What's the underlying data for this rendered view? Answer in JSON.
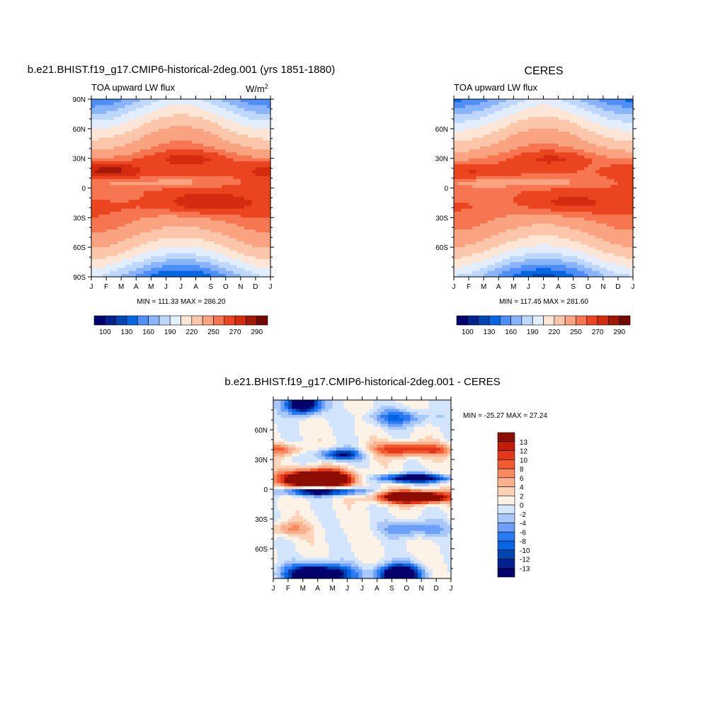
{
  "colors": {
    "seq": [
      "#03006d",
      "#02238f",
      "#0046b3",
      "#0566e4",
      "#4f8ef7",
      "#8ab4fa",
      "#bdd7fd",
      "#e2eefd",
      "#fde6d6",
      "#fbc6a9",
      "#f9a381",
      "#f57650",
      "#eb4520",
      "#d52b0f",
      "#a21806",
      "#730a01"
    ],
    "diff": [
      "#03006d",
      "#02238f",
      "#0046b3",
      "#0566e4",
      "#2a7af5",
      "#6ca0fa",
      "#a8c8fc",
      "#d3e5fd",
      "#fdf2e6",
      "#fdd2b7",
      "#fbb18d",
      "#f98a60",
      "#f25b30",
      "#e3391a",
      "#c01d0a",
      "#8c0d02"
    ]
  },
  "panels": [
    {
      "title": "b.e21.BHIST.f19_g17.CMIP6-historical-2deg.001 (yrs 1851-1880)",
      "subtitle": "TOA upward LW flux",
      "units": "W/m",
      "units_sup": "2",
      "stats": "MIN = 111.33 MAX = 286.20",
      "x_ticks": [
        "J",
        "F",
        "M",
        "A",
        "M",
        "J",
        "J",
        "A",
        "S",
        "O",
        "N",
        "D",
        "J"
      ],
      "y_ticks": [
        "90N",
        "60N",
        "30N",
        "0",
        "30S",
        "60S",
        "90S"
      ],
      "colorbar_labels": [
        "100",
        "130",
        "160",
        "190",
        "220",
        "250",
        "270",
        "290"
      ]
    },
    {
      "title": "CERES",
      "subtitle": "TOA upward LW flux",
      "stats": "MIN = 117.45 MAX = 281.60",
      "x_ticks": [
        "J",
        "F",
        "M",
        "A",
        "M",
        "J",
        "J",
        "A",
        "S",
        "O",
        "N",
        "D",
        "J"
      ],
      "y_ticks": [
        "60N",
        "30N",
        "0",
        "30S",
        "60S"
      ],
      "colorbar_labels": [
        "100",
        "130",
        "160",
        "190",
        "220",
        "250",
        "270",
        "290"
      ]
    },
    {
      "title": "b.e21.BHIST.f19_g17.CMIP6-historical-2deg.001 - CERES",
      "stats": "MIN = -25.27 MAX =  27.24",
      "x_ticks": [
        "J",
        "F",
        "M",
        "A",
        "M",
        "J",
        "J",
        "A",
        "S",
        "O",
        "N",
        "D",
        "J"
      ],
      "y_ticks": [
        "60N",
        "30N",
        "0",
        "30S",
        "60S"
      ],
      "colorbar_labels": [
        "13",
        "12",
        "10",
        "8",
        "6",
        "4",
        "2",
        "0",
        "-2",
        "-4",
        "-6",
        "-8",
        "-10",
        "-12",
        "-13"
      ]
    }
  ],
  "chart_data": [
    {
      "type": "heatmap",
      "title": "b.e21.BHIST.f19_g17.CMIP6-historical-2deg.001 (yrs 1851-1880)",
      "subtitle": "TOA upward LW flux",
      "units": "W/m2",
      "x": [
        "J",
        "F",
        "M",
        "A",
        "M",
        "J",
        "J",
        "A",
        "S",
        "O",
        "N",
        "D",
        "J"
      ],
      "y_range": [
        -90,
        90
      ],
      "levels": [
        100,
        115,
        130,
        145,
        160,
        175,
        190,
        205,
        220,
        235,
        250,
        260,
        270,
        280,
        290
      ],
      "min": 111.33,
      "max": 286.2
    },
    {
      "type": "heatmap",
      "title": "CERES",
      "subtitle": "TOA upward LW flux",
      "x": [
        "J",
        "F",
        "M",
        "A",
        "M",
        "J",
        "J",
        "A",
        "S",
        "O",
        "N",
        "D",
        "J"
      ],
      "y_range": [
        -90,
        90
      ],
      "levels": [
        100,
        115,
        130,
        145,
        160,
        175,
        190,
        205,
        220,
        235,
        250,
        260,
        270,
        280,
        290
      ],
      "min": 117.45,
      "max": 281.6
    },
    {
      "type": "heatmap",
      "title": "b.e21.BHIST.f19_g17.CMIP6-historical-2deg.001 - CERES",
      "x": [
        "J",
        "F",
        "M",
        "A",
        "M",
        "J",
        "J",
        "A",
        "S",
        "O",
        "N",
        "D",
        "J"
      ],
      "y_range": [
        -90,
        90
      ],
      "levels": [
        -13,
        -12,
        -10,
        -8,
        -6,
        -4,
        -2,
        0,
        2,
        4,
        6,
        8,
        10,
        12,
        13
      ],
      "min": -25.27,
      "max": 27.24
    }
  ]
}
